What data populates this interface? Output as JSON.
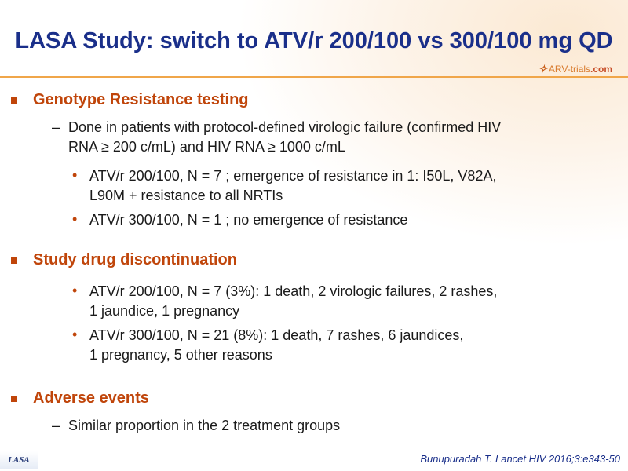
{
  "title": "LASA Study: switch to ATV/r 200/100 vs 300/100 mg QD",
  "logo": {
    "mark": "✧",
    "text_main": "ARV-trials",
    "text_suffix": ".com"
  },
  "sections": {
    "genotype": {
      "heading": "Genotype Resistance testing",
      "sub_line1": "Done in patients with protocol-defined virologic failure (confirmed HIV",
      "sub_line2": "RNA ≥ 200 c/mL) and HIV RNA ≥ 1000 c/mL",
      "b1_line1": "ATV/r 200/100, N = 7 ; emergence of resistance in 1: I50L, V82A,",
      "b1_line2": "L90M + resistance to all NRTIs",
      "b2_line1": "ATV/r 300/100, N = 1 ; no emergence of resistance"
    },
    "discontinuation": {
      "heading": "Study drug discontinuation",
      "b1_line1": "ATV/r 200/100, N = 7 (3%): 1 death, 2 virologic failures, 2 rashes,",
      "b1_line2": "1 jaundice, 1 pregnancy",
      "b2_line1": "ATV/r 300/100, N = 21 (8%): 1 death, 7 rashes, 6 jaundices,",
      "b2_line2": "1 pregnancy, 5 other reasons"
    },
    "adverse": {
      "heading": "Adverse events",
      "sub_line1": "Similar proportion in the 2 treatment groups"
    }
  },
  "footer": {
    "badge": "LASA",
    "citation": "Bunupuradah T. Lancet HIV 2016;3:e343-50"
  },
  "colors": {
    "title": "#1a2f8a",
    "heading": "#c0450a",
    "rule": "#f0a64a"
  }
}
